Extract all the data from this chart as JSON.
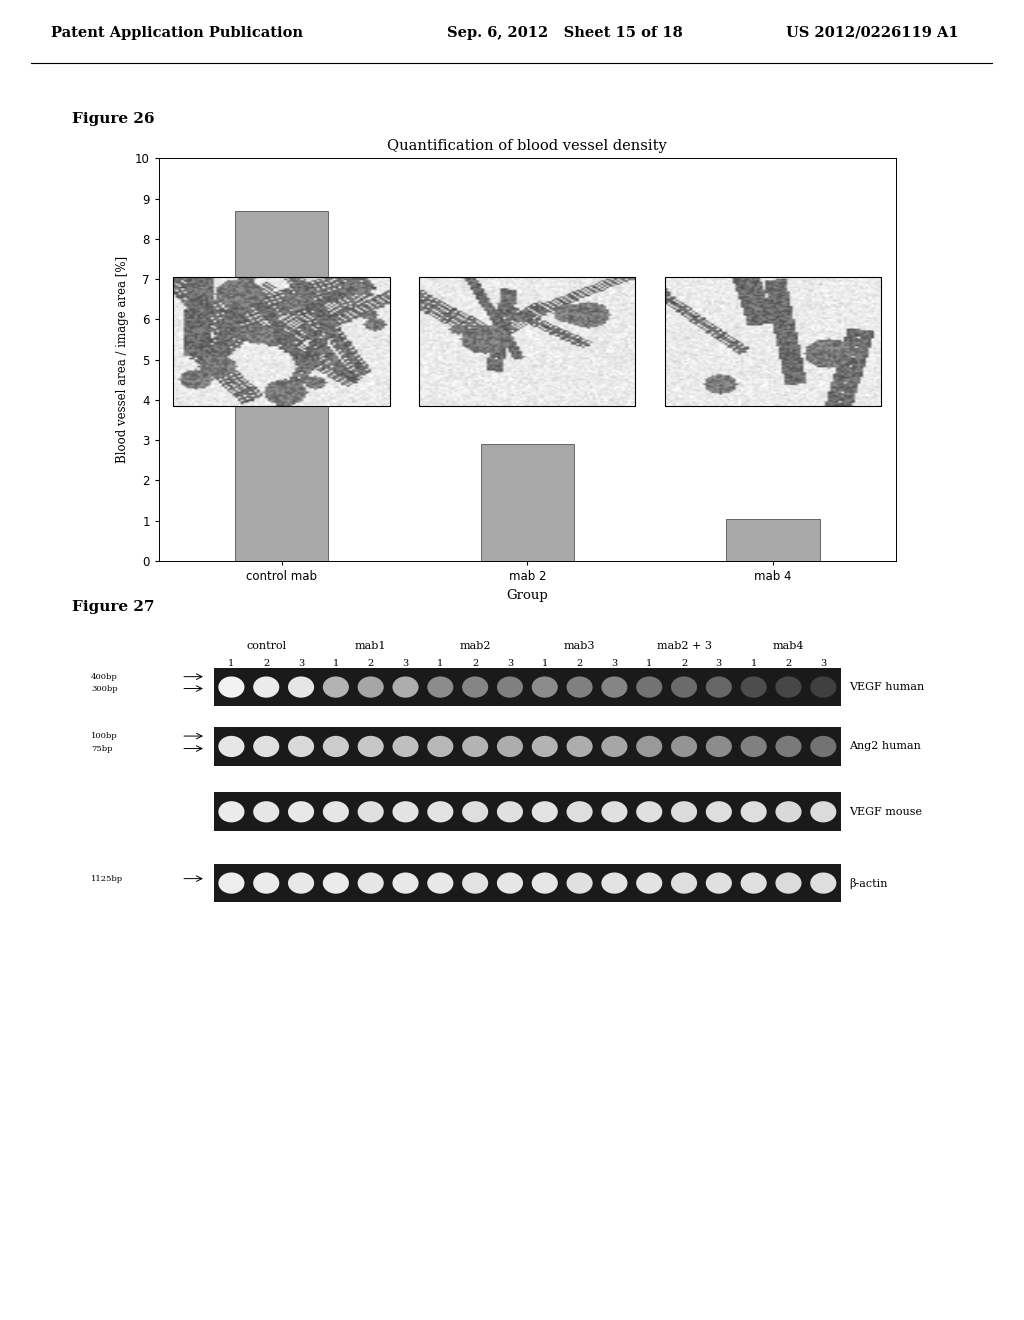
{
  "header_left": "Patent Application Publication",
  "header_center": "Sep. 6, 2012   Sheet 15 of 18",
  "header_right": "US 2012/0226119 A1",
  "fig26_title": "Figure 26",
  "chart_title": "Quantification of blood vessel density",
  "bar_groups": [
    "control mab",
    "mab 2",
    "mab 4"
  ],
  "bar_values": [
    8.7,
    2.9,
    1.05
  ],
  "bar_color": "#a8a8a8",
  "ylim": [
    0,
    10
  ],
  "yticks": [
    0,
    1,
    2,
    3,
    4,
    5,
    6,
    7,
    8,
    9,
    10
  ],
  "ylabel": "Blood vessel area / image area [%]",
  "xlabel": "Group",
  "fig27_title": "Figure 27",
  "gel_col_labels": [
    "control",
    "mab1",
    "mab2",
    "mab3",
    "mab2 + 3",
    "mab4"
  ],
  "gel_row_labels": [
    "VEGF human",
    "Ang2 human",
    "VEGF mouse",
    "β-actin"
  ],
  "gel_bp_labels_left": [
    "400bp",
    "300bp",
    "100bp",
    "75bp",
    "1125bp"
  ],
  "background_color": "#ffffff",
  "chart_bg": "#ffffff"
}
